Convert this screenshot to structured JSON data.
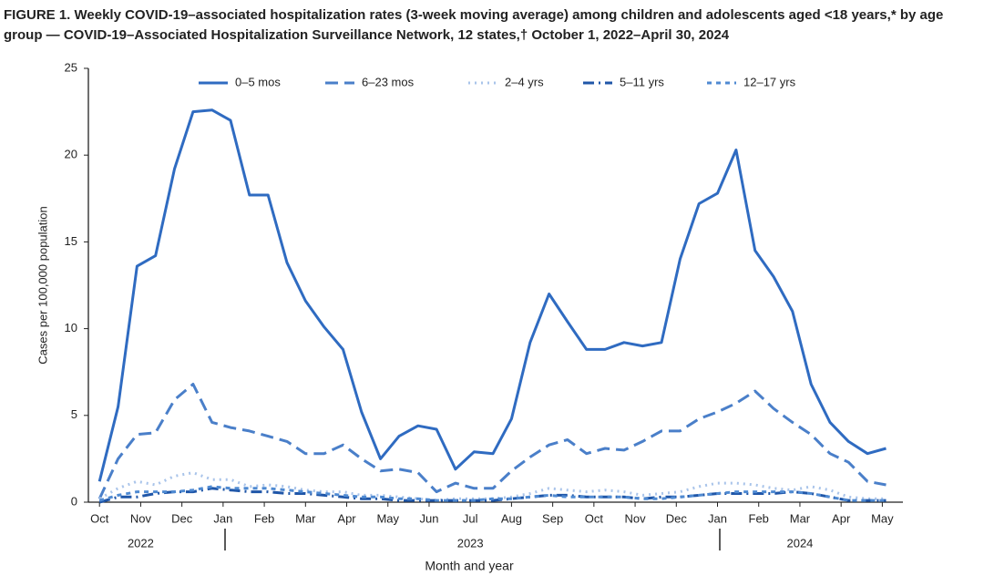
{
  "chart_data": {
    "type": "line",
    "title": "FIGURE 1. Weekly COVID-19–associated hospitalization rates (3-week moving average) among children and adolescents aged <18 years,* by age group — COVID-19–Associated Hospitalization Surveillance Network, 12 states,† October 1, 2022–April 30, 2024",
    "x_label": "Month and year",
    "y_label": "Cases per 100,000 population",
    "xlim": [
      -0.27,
      19.5
    ],
    "xticks": [
      {
        "value": 0,
        "label": "Oct"
      },
      {
        "value": 1,
        "label": "Nov"
      },
      {
        "value": 2,
        "label": "Dec"
      },
      {
        "value": 3,
        "label": "Jan"
      },
      {
        "value": 4,
        "label": "Feb"
      },
      {
        "value": 5,
        "label": "Mar"
      },
      {
        "value": 6,
        "label": "Apr"
      },
      {
        "value": 7,
        "label": "May"
      },
      {
        "value": 8,
        "label": "Jun"
      },
      {
        "value": 9,
        "label": "Jul"
      },
      {
        "value": 10,
        "label": "Aug"
      },
      {
        "value": 11,
        "label": "Sep"
      },
      {
        "value": 12,
        "label": "Oct"
      },
      {
        "value": 13,
        "label": "Nov"
      },
      {
        "value": 14,
        "label": "Dec"
      },
      {
        "value": 15,
        "label": "Jan"
      },
      {
        "value": 16,
        "label": "Feb"
      },
      {
        "value": 17,
        "label": "Mar"
      },
      {
        "value": 18,
        "label": "Apr"
      },
      {
        "value": 19,
        "label": "May"
      }
    ],
    "year_labels": [
      {
        "value": 1,
        "label": "2022"
      },
      {
        "value": 9,
        "label": "2023"
      },
      {
        "value": 17,
        "label": "2024"
      }
    ],
    "ylim": [
      0,
      25
    ],
    "yticks": [
      0,
      5,
      10,
      15,
      20,
      25
    ],
    "legend": "top",
    "x": [
      0,
      0.45,
      0.91,
      1.36,
      1.82,
      2.27,
      2.73,
      3.18,
      3.64,
      4.09,
      4.55,
      5,
      5.45,
      5.91,
      6.36,
      6.82,
      7.27,
      7.73,
      8.18,
      8.64,
      9.09,
      9.55,
      10,
      10.45,
      10.91,
      11.36,
      11.82,
      12.27,
      12.73,
      13.18,
      13.64,
      14.09,
      14.55,
      15,
      15.45,
      15.91,
      16.36,
      16.82,
      17.27,
      17.73,
      18.18,
      18.64,
      19.09
    ],
    "series": [
      {
        "name": "0–5 mos",
        "color": "#2f6bc1",
        "dash": "solid",
        "values": [
          1.2,
          5.5,
          13.6,
          14.2,
          19.2,
          22.5,
          22.6,
          22.0,
          17.7,
          17.7,
          13.8,
          11.6,
          10.1,
          8.8,
          5.2,
          2.5,
          3.8,
          4.4,
          4.2,
          1.9,
          2.9,
          2.8,
          4.8,
          9.2,
          12.0,
          10.4,
          8.8,
          8.8,
          9.2,
          9.0,
          9.2,
          14.0,
          17.2,
          17.8,
          20.3,
          14.5,
          13.0,
          11.0,
          6.8,
          4.6,
          3.5,
          2.8,
          3.1
        ]
      },
      {
        "name": "6–23 mos",
        "color": "#4a7fc9",
        "dash": "dashed",
        "values": [
          0.2,
          2.5,
          3.9,
          4.0,
          5.9,
          6.8,
          4.6,
          4.3,
          4.1,
          3.8,
          3.5,
          2.8,
          2.8,
          3.3,
          2.5,
          1.8,
          1.9,
          1.7,
          0.6,
          1.1,
          0.8,
          0.8,
          1.8,
          2.6,
          3.3,
          3.6,
          2.8,
          3.1,
          3.0,
          3.5,
          4.1,
          4.1,
          4.8,
          5.2,
          5.7,
          6.4,
          5.4,
          4.6,
          3.9,
          2.8,
          2.3,
          1.2,
          1.0
        ]
      },
      {
        "name": "2–4 yrs",
        "color": "#a9c4ea",
        "dash": "dotted",
        "values": [
          0.2,
          0.8,
          1.2,
          1.0,
          1.5,
          1.7,
          1.3,
          1.3,
          0.9,
          1.0,
          0.9,
          0.7,
          0.6,
          0.6,
          0.4,
          0.4,
          0.3,
          0.2,
          0.1,
          0.2,
          0.2,
          0.2,
          0.3,
          0.5,
          0.8,
          0.7,
          0.6,
          0.7,
          0.6,
          0.4,
          0.5,
          0.6,
          0.9,
          1.1,
          1.1,
          1.0,
          0.8,
          0.7,
          0.9,
          0.7,
          0.3,
          0.2,
          0.2
        ]
      },
      {
        "name": "5–11 yrs",
        "color": "#1f56a8",
        "dash": "dashdot",
        "values": [
          0,
          0.3,
          0.3,
          0.5,
          0.6,
          0.6,
          0.8,
          0.7,
          0.6,
          0.6,
          0.5,
          0.5,
          0.4,
          0.3,
          0.2,
          0.2,
          0.1,
          0.1,
          0.1,
          0.1,
          0.1,
          0.1,
          0.2,
          0.3,
          0.4,
          0.4,
          0.3,
          0.3,
          0.3,
          0.2,
          0.3,
          0.3,
          0.4,
          0.5,
          0.5,
          0.5,
          0.5,
          0.6,
          0.5,
          0.3,
          0.1,
          0.1,
          0.1
        ]
      },
      {
        "name": "12–17 yrs",
        "color": "#4f8ad2",
        "dash": "shortdash",
        "values": [
          0.1,
          0.4,
          0.6,
          0.6,
          0.6,
          0.7,
          0.9,
          0.8,
          0.8,
          0.8,
          0.7,
          0.6,
          0.5,
          0.4,
          0.3,
          0.3,
          0.2,
          0.2,
          0.1,
          0.1,
          0.1,
          0.2,
          0.2,
          0.3,
          0.4,
          0.3,
          0.3,
          0.3,
          0.3,
          0.2,
          0.2,
          0.3,
          0.4,
          0.5,
          0.6,
          0.6,
          0.6,
          0.6,
          0.5,
          0.3,
          0.1,
          0.1,
          0.1
        ]
      }
    ]
  }
}
